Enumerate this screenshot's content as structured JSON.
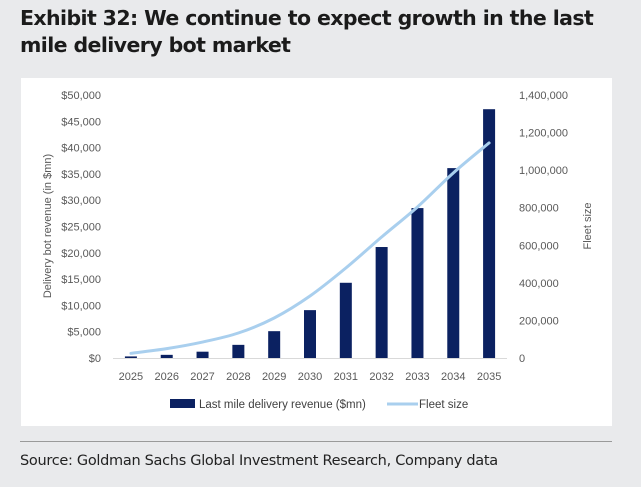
{
  "title": "Exhibit 32: We continue to expect growth in the last mile delivery bot market",
  "source": "Source: Goldman Sachs Global Investment Research, Company data",
  "colors": {
    "bar": "#0b2161",
    "line": "#a9cfee",
    "axis": "#d9d9d9"
  },
  "chart_data": {
    "type": "bar",
    "title": "We continue to expect growth in the last mile delivery bot market",
    "categories": [
      "2025",
      "2026",
      "2027",
      "2028",
      "2029",
      "2030",
      "2031",
      "2032",
      "2033",
      "2034",
      "2035"
    ],
    "series": [
      {
        "name": "Last mile delivery revenue ($mn)",
        "type": "bar",
        "axis": "left",
        "values": [
          300,
          600,
          1200,
          2500,
          5100,
          9100,
          14300,
          21100,
          28500,
          36100,
          47300
        ]
      },
      {
        "name": "Fleet size",
        "type": "line",
        "axis": "right",
        "values": [
          25000,
          50000,
          85000,
          133000,
          213000,
          330000,
          479000,
          644000,
          804000,
          985000,
          1145000
        ]
      }
    ],
    "xlabel": "",
    "ylabel": "Delivery bot revenue (in $mn)",
    "ylabel_right": "Fleet size",
    "ylim": [
      0,
      50000
    ],
    "ylim_right": [
      0,
      1400000
    ],
    "yticks": [
      "$0",
      "$5,000",
      "$10,000",
      "$15,000",
      "$20,000",
      "$25,000",
      "$30,000",
      "$35,000",
      "$40,000",
      "$45,000",
      "$50,000"
    ],
    "yticks_right": [
      "0",
      "200,000",
      "400,000",
      "600,000",
      "800,000",
      "1,000,000",
      "1,200,000",
      "1,400,000"
    ],
    "grid": false,
    "legend": "bottom"
  }
}
